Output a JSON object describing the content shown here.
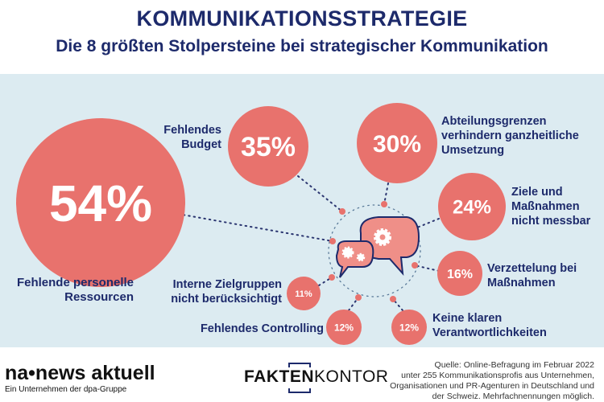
{
  "header": {
    "title": "KOMMUNIKATIONSSTRATEGIE",
    "subtitle": "Die 8 größten Stolpersteine bei strategischer Kommunikation"
  },
  "chart_data": {
    "type": "bubble",
    "title": "KOMMUNIKATIONSSTRATEGIE",
    "subtitle": "Die 8 größten Stolpersteine bei strategischer Kommunikation",
    "items": [
      {
        "label": "Fehlende personelle Ressourcen",
        "value": 54,
        "display": "54%"
      },
      {
        "label": "Fehlendes Budget",
        "value": 35,
        "display": "35%"
      },
      {
        "label": "Abteilungsgrenzen verhindern ganzheitliche Umsetzung",
        "value": 30,
        "display": "30%"
      },
      {
        "label": "Ziele und Maßnahmen nicht messbar",
        "value": 24,
        "display": "24%"
      },
      {
        "label": "Verzettelung bei Maßnahmen",
        "value": 16,
        "display": "16%"
      },
      {
        "label": "Keine klaren Verantwortlichkeiten",
        "value": 12,
        "display": "12%"
      },
      {
        "label": "Fehlendes Controlling",
        "value": 12,
        "display": "12%"
      },
      {
        "label": "Interne Zielgruppen nicht berücksichtigt",
        "value": 11,
        "display": "11%"
      }
    ],
    "unit": "%"
  },
  "labels": {
    "ressourcen": [
      "Fehlende personelle",
      "Ressourcen"
    ],
    "budget": [
      "Fehlendes",
      "Budget"
    ],
    "abteilung": [
      "Abteilungsgrenzen",
      "verhindern ganzheitliche",
      "Umsetzung"
    ],
    "ziele": [
      "Ziele und",
      "Maßnahmen",
      "nicht messbar"
    ],
    "verzettelung": [
      "Verzettelung bei",
      "Maßnahmen"
    ],
    "verantwortlich": [
      "Keine klaren",
      "Verantwortlichkeiten"
    ],
    "controlling": "Fehlendes Controlling",
    "intern": [
      "Interne Zielgruppen",
      "nicht berücksichtigt"
    ]
  },
  "colors": {
    "accent": "#e8726d",
    "navy": "#1d2a6b",
    "band": "#dcebf1"
  },
  "footer": {
    "logo": "na•news aktuell",
    "logo_sub": "Ein Unternehmen der dpa-Gruppe",
    "brand_bold": "FAKTEN",
    "brand_light": "KONTOR",
    "source": [
      "Quelle: Online-Befragung im Februar 2022",
      "unter 255 Kommunikationsprofis aus Unternehmen,",
      "Organisationen und PR-Agenturen in Deutschland und",
      "der Schweiz. Mehrfachnennungen möglich."
    ]
  }
}
